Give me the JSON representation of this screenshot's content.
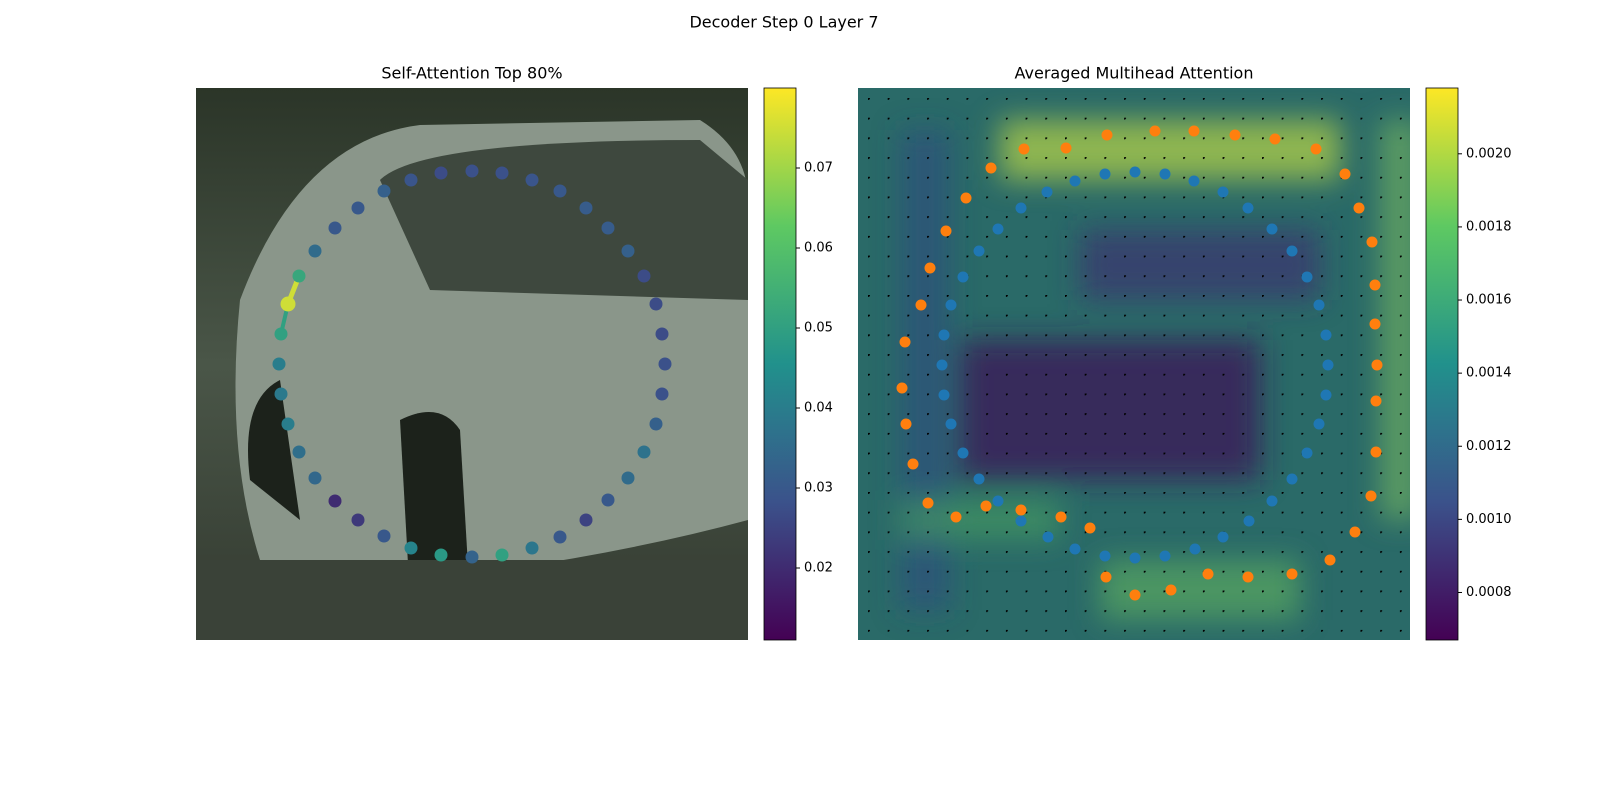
{
  "title": "Decoder Step 0 Layer 7",
  "chart_data": [
    {
      "type": "scatter",
      "title": "Self-Attention Top 80%",
      "colormap": "viridis",
      "xlim": [
        0,
        552
      ],
      "ylim": [
        552,
        0
      ],
      "x": [
        245,
        276,
        306,
        336,
        364,
        390,
        412,
        432,
        448,
        460,
        466,
        469,
        466,
        460,
        448,
        432,
        412,
        390,
        364,
        336,
        306,
        276,
        245,
        215,
        188,
        162,
        139,
        119,
        103,
        92,
        85,
        83,
        85,
        92,
        103,
        119,
        139,
        162,
        188,
        215
      ],
      "y": [
        85,
        83,
        85,
        92,
        103,
        120,
        140,
        163,
        188,
        216,
        246,
        276,
        306,
        336,
        364,
        390,
        412,
        432,
        449,
        460,
        467,
        469,
        467,
        460,
        448,
        432,
        413,
        390,
        364,
        336,
        306,
        276,
        246,
        216,
        188,
        163,
        140,
        120,
        103,
        92
      ],
      "values": [
        0.027,
        0.028,
        0.028,
        0.029,
        0.03,
        0.031,
        0.031,
        0.032,
        0.027,
        0.027,
        0.027,
        0.028,
        0.028,
        0.032,
        0.037,
        0.035,
        0.03,
        0.025,
        0.03,
        0.038,
        0.05,
        0.033,
        0.048,
        0.042,
        0.03,
        0.023,
        0.02,
        0.034,
        0.036,
        0.04,
        0.039,
        0.04,
        0.05,
        0.075,
        0.052,
        0.035,
        0.03,
        0.03,
        0.032,
        0.029
      ],
      "clim": [
        0.011,
        0.08
      ],
      "cticks": [
        0.02,
        0.03,
        0.04,
        0.05,
        0.06,
        0.07
      ]
    },
    {
      "type": "scatter",
      "title": "Averaged Multihead Attention",
      "colormap": "viridis",
      "xlim": [
        0,
        552
      ],
      "ylim": [
        552,
        0
      ],
      "series": [
        {
          "color": "#1f77b4",
          "x": [
            247,
            277,
            307,
            336,
            365,
            390,
            414,
            434,
            449,
            461,
            468,
            470,
            468,
            461,
            449,
            434,
            414,
            391,
            365,
            337,
            307,
            277,
            247,
            217,
            190,
            163,
            140,
            121,
            105,
            93,
            86,
            84,
            86,
            93,
            105,
            121,
            140,
            163,
            189,
            217
          ],
          "y": [
            86,
            84,
            86,
            93,
            104,
            120,
            141,
            163,
            189,
            217,
            247,
            277,
            307,
            336,
            365,
            391,
            413,
            433,
            449,
            461,
            468,
            470,
            468,
            461,
            449,
            433,
            413,
            391,
            365,
            336,
            307,
            277,
            247,
            217,
            189,
            163,
            141,
            120,
            104,
            93
          ]
        },
        {
          "color": "#ff7f0e",
          "x": [
            297,
            336,
            377,
            417,
            458,
            487,
            501,
            514,
            517,
            517,
            519,
            518,
            518,
            513,
            497,
            472,
            434,
            390,
            350,
            313,
            277,
            248,
            232,
            203,
            163,
            128,
            98,
            70,
            55,
            48,
            44,
            47,
            63,
            72,
            88,
            108,
            133,
            166,
            208,
            249
          ],
          "y": [
            43,
            43,
            47,
            51,
            61,
            86,
            120,
            154,
            197,
            236,
            277,
            313,
            364,
            408,
            444,
            472,
            486,
            489,
            486,
            502,
            507,
            489,
            440,
            429,
            422,
            418,
            429,
            415,
            376,
            336,
            300,
            254,
            217,
            180,
            143,
            110,
            80,
            61,
            60,
            47
          ]
        }
      ],
      "clim": [
        0.00067,
        0.00218
      ],
      "cticks": [
        0.0008,
        {
          "value": 0.001,
          "label": "0.0010"
        },
        0.0012,
        0.0014,
        0.0016,
        0.0018,
        {
          "value": 0.002,
          "label": "0.0020"
        }
      ]
    }
  ]
}
